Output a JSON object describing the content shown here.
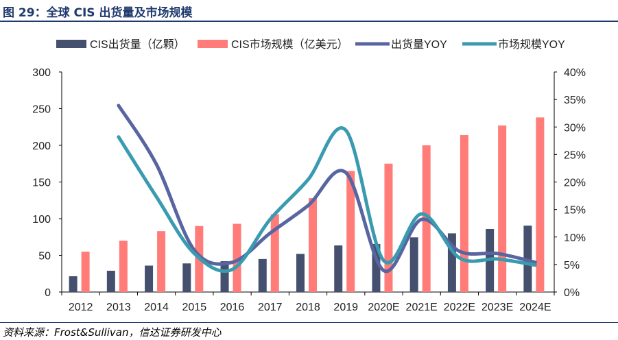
{
  "title": "图 29：全球 CIS 出货量及市场规模",
  "source": "资料来源：Frost&Sullivan，信达证券研发中心",
  "chart_data": {
    "type": "bar+line",
    "categories": [
      "2012",
      "2013",
      "2014",
      "2015",
      "2016",
      "2017",
      "2018",
      "2019",
      "2020E",
      "2021E",
      "2022E",
      "2023E",
      "2024E"
    ],
    "series": [
      {
        "name": "CIS出货量（亿颗）",
        "kind": "bar",
        "axis": "left",
        "color": "#44506e",
        "values": [
          21.5,
          29,
          36,
          39,
          42,
          45,
          52,
          63.5,
          65.5,
          74.5,
          80,
          86,
          90.5
        ]
      },
      {
        "name": "CIS市场规模（亿美元）",
        "kind": "bar",
        "axis": "left",
        "color": "#ff7c78",
        "values": [
          55,
          70,
          83,
          90,
          93,
          106,
          128,
          165,
          175,
          200,
          214,
          227,
          238
        ]
      },
      {
        "name": "出货量YOY",
        "kind": "line",
        "axis": "right",
        "color": "#5865a0",
        "values": [
          null,
          33.9,
          23.2,
          7.6,
          5.4,
          10.7,
          15.7,
          21.7,
          3.9,
          13.2,
          7.4,
          7.0,
          5.4
        ]
      },
      {
        "name": "市场规模YOY",
        "kind": "line",
        "axis": "right",
        "color": "#3a9bb0",
        "values": [
          null,
          28.2,
          17.3,
          7.0,
          4.1,
          13.2,
          20.4,
          29.4,
          5.7,
          14.2,
          6.2,
          6.0,
          4.9
        ]
      }
    ],
    "left_axis": {
      "ylim": [
        0,
        300
      ],
      "ticks": [
        "0",
        "50",
        "100",
        "150",
        "200",
        "250",
        "300"
      ]
    },
    "right_axis": {
      "ylim": [
        0,
        40
      ],
      "ticks": [
        "0%",
        "5%",
        "10%",
        "15%",
        "20%",
        "25%",
        "30%",
        "35%",
        "40%"
      ]
    },
    "legend": "top",
    "grid": false
  }
}
